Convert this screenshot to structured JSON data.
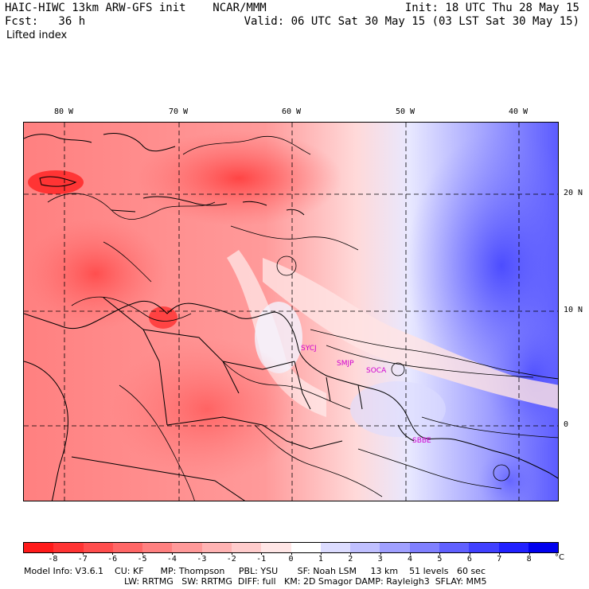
{
  "header": {
    "model_title": "HAIC-HIWC 13km ARW-GFS init    NCAR/MMM",
    "forecast": "Fcst:   36 h",
    "field": "Lifted index",
    "init": "Init: 18 UTC Thu 28 May 15",
    "valid": "Valid: 06 UTC Sat 30 May 15 (03 LST Sat 30 May 15)"
  },
  "map": {
    "longitude_labels": [
      "80 W",
      "70 W",
      "60 W",
      "50 W",
      "40 W"
    ],
    "latitude_labels": [
      "20 N",
      "10 N",
      "0"
    ],
    "stations": [
      "SYCJ",
      "SMJP",
      "SOCA",
      "SBBE"
    ],
    "colors": {
      "boundary": "#000000",
      "contour": "#000000",
      "grid": "#000000",
      "station": "#d000d0"
    }
  },
  "colorbar": {
    "unit": "°C",
    "tick_labels": [
      "-8",
      "-7",
      "-6",
      "-5",
      "-4",
      "-3",
      "-2",
      "-1",
      "0",
      "1",
      "2",
      "3",
      "4",
      "5",
      "6",
      "7",
      "8"
    ],
    "colors": [
      "#ff1a1a",
      "#ff3333",
      "#ff4d4d",
      "#ff6666",
      "#ff8080",
      "#ff9999",
      "#ffb3b3",
      "#ffcccc",
      "#ffe6e6",
      "#ffffff",
      "#dcdcff",
      "#c0c0ff",
      "#a0a0ff",
      "#8080ff",
      "#6060ff",
      "#4040ff",
      "#2020ff",
      "#0000ee"
    ]
  },
  "footer": {
    "line1": "Model Info: V3.6.1    CU: KF      MP: Thompson     PBL: YSU       SF: Noah LSM     13 km    51 levels   60 sec",
    "line2": "LW: RRTMG   SW: RRTMG  DIFF: full   KM: 2D Smagor DAMP: Rayleigh3  SFLAY: MM5"
  }
}
